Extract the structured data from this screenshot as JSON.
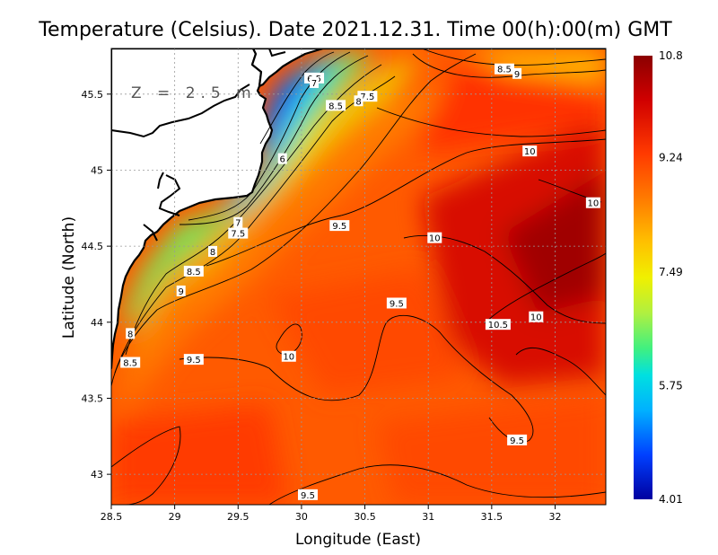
{
  "chart_data": {
    "type": "heatmap",
    "title": "Temperature (Celsius). Date 2021.12.31. Time 00(h):00(m)  GMT",
    "annotation": "Z = 2.5 m",
    "xlabel": "Longitude (East)",
    "ylabel": "Latitude (North)",
    "xlim": [
      28.5,
      32.4
    ],
    "ylim": [
      42.8,
      45.8
    ],
    "x_ticks": [
      "28.5",
      "29",
      "29.5",
      "30",
      "30.5",
      "31",
      "31.5",
      "32"
    ],
    "x_tick_values": [
      28.5,
      29,
      29.5,
      30,
      30.5,
      31,
      31.5,
      32
    ],
    "y_ticks": [
      "43",
      "43.5",
      "44",
      "44.5",
      "45",
      "45.5"
    ],
    "y_tick_values": [
      43,
      43.5,
      44,
      44.5,
      45,
      45.5
    ],
    "grid": true,
    "colorbar": {
      "min": 4.01,
      "max": 10.8,
      "tick_labels": [
        "10.8",
        "9.24",
        "7.49",
        "5.75",
        "4.01"
      ],
      "tick_values": [
        10.8,
        9.24,
        7.49,
        5.75,
        4.01
      ]
    },
    "contour_labels": [
      {
        "text": "8.5",
        "x": 31.6,
        "y": 45.66
      },
      {
        "text": "9",
        "x": 31.7,
        "y": 45.63
      },
      {
        "text": "6.5",
        "x": 30.1,
        "y": 45.6
      },
      {
        "text": "7",
        "x": 30.1,
        "y": 45.57
      },
      {
        "text": "7.5",
        "x": 30.52,
        "y": 45.48
      },
      {
        "text": "8",
        "x": 30.45,
        "y": 45.45
      },
      {
        "text": "8.5",
        "x": 30.27,
        "y": 45.42
      },
      {
        "text": "6",
        "x": 29.85,
        "y": 45.07
      },
      {
        "text": "10",
        "x": 31.8,
        "y": 45.12
      },
      {
        "text": "10",
        "x": 32.3,
        "y": 44.78
      },
      {
        "text": "7",
        "x": 29.5,
        "y": 44.65
      },
      {
        "text": "7.5",
        "x": 29.5,
        "y": 44.58
      },
      {
        "text": "9.5",
        "x": 30.3,
        "y": 44.63
      },
      {
        "text": "10",
        "x": 31.05,
        "y": 44.55
      },
      {
        "text": "8",
        "x": 29.3,
        "y": 44.46
      },
      {
        "text": "8.5",
        "x": 29.15,
        "y": 44.33
      },
      {
        "text": "9",
        "x": 29.05,
        "y": 44.2
      },
      {
        "text": "9.5",
        "x": 30.75,
        "y": 44.12
      },
      {
        "text": "10.5",
        "x": 31.55,
        "y": 43.98
      },
      {
        "text": "10",
        "x": 31.85,
        "y": 44.03
      },
      {
        "text": "8",
        "x": 28.65,
        "y": 43.92
      },
      {
        "text": "10",
        "x": 29.9,
        "y": 43.77
      },
      {
        "text": "9.5",
        "x": 29.15,
        "y": 43.75
      },
      {
        "text": "8.5",
        "x": 28.65,
        "y": 43.73
      },
      {
        "text": "9.5",
        "x": 31.7,
        "y": 43.22
      },
      {
        "text": "9.5",
        "x": 30.05,
        "y": 42.86
      }
    ]
  },
  "colors": {
    "land": "#ffffff",
    "coast": "#000000",
    "grid": "#9a9a9a",
    "colormap": [
      "#0000a0",
      "#0040ff",
      "#00b0ff",
      "#00e0e0",
      "#40f080",
      "#b0f040",
      "#f0f000",
      "#ffc000",
      "#ff8000",
      "#ff3a00",
      "#e00000",
      "#8b0000"
    ]
  }
}
